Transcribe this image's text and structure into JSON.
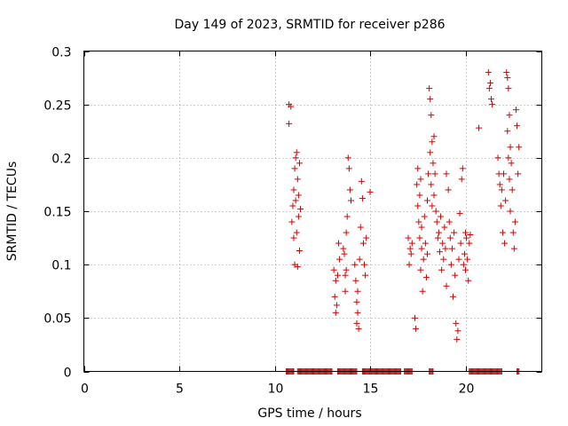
{
  "chart_data": {
    "type": "scatter",
    "title": "Day 149 of 2023, SRMTID for receiver p286",
    "xlabel": "GPS time / hours",
    "ylabel": "SRMTID / TECUs",
    "xlim": [
      0,
      24
    ],
    "ylim": [
      0,
      0.3
    ],
    "xticks": [
      0,
      5,
      10,
      15,
      20
    ],
    "yticks": [
      0,
      0.05,
      0.1,
      0.15,
      0.2,
      0.25,
      0.3
    ],
    "xtick_labels": [
      "0",
      "5",
      "10",
      "15",
      "20"
    ],
    "ytick_labels": [
      "0",
      "0.05",
      "0.1",
      "0.15",
      "0.2",
      "0.25",
      "0.3"
    ],
    "grid": true,
    "marker": "+",
    "series": [
      {
        "name": "SRMTID",
        "color": "#d40000",
        "points": [
          [
            10.75,
            0.25
          ],
          [
            10.75,
            0.232
          ],
          [
            10.85,
            0.248
          ],
          [
            10.9,
            0.14
          ],
          [
            10.95,
            0.155
          ],
          [
            11.0,
            0.17
          ],
          [
            11.0,
            0.125
          ],
          [
            11.05,
            0.19
          ],
          [
            11.05,
            0.1
          ],
          [
            11.1,
            0.2
          ],
          [
            11.1,
            0.16
          ],
          [
            11.15,
            0.205
          ],
          [
            11.15,
            0.13
          ],
          [
            11.2,
            0.18
          ],
          [
            11.2,
            0.098
          ],
          [
            11.25,
            0.165
          ],
          [
            11.25,
            0.145
          ],
          [
            11.3,
            0.195
          ],
          [
            11.3,
            0.113
          ],
          [
            11.35,
            0.152
          ],
          [
            13.1,
            0.095
          ],
          [
            13.15,
            0.07
          ],
          [
            13.2,
            0.055
          ],
          [
            13.2,
            0.085
          ],
          [
            13.25,
            0.062
          ],
          [
            13.3,
            0.09
          ],
          [
            13.35,
            0.12
          ],
          [
            13.4,
            0.105
          ],
          [
            13.6,
            0.115
          ],
          [
            13.65,
            0.11
          ],
          [
            13.7,
            0.09
          ],
          [
            13.7,
            0.075
          ],
          [
            13.75,
            0.13
          ],
          [
            13.75,
            0.095
          ],
          [
            13.8,
            0.145
          ],
          [
            13.85,
            0.2
          ],
          [
            13.9,
            0.19
          ],
          [
            13.95,
            0.17
          ],
          [
            14.0,
            0.16
          ],
          [
            14.2,
            0.1
          ],
          [
            14.25,
            0.085
          ],
          [
            14.3,
            0.065
          ],
          [
            14.3,
            0.045
          ],
          [
            14.35,
            0.075
          ],
          [
            14.35,
            0.055
          ],
          [
            14.4,
            0.04
          ],
          [
            14.45,
            0.105
          ],
          [
            14.5,
            0.135
          ],
          [
            14.55,
            0.178
          ],
          [
            14.6,
            0.162
          ],
          [
            14.65,
            0.12
          ],
          [
            14.7,
            0.1
          ],
          [
            14.75,
            0.09
          ],
          [
            14.8,
            0.125
          ],
          [
            15.0,
            0.168
          ],
          [
            17.0,
            0.125
          ],
          [
            17.05,
            0.1
          ],
          [
            17.1,
            0.115
          ],
          [
            17.15,
            0.11
          ],
          [
            17.2,
            0.12
          ],
          [
            17.35,
            0.05
          ],
          [
            17.4,
            0.04
          ],
          [
            17.45,
            0.175
          ],
          [
            17.5,
            0.19
          ],
          [
            17.5,
            0.155
          ],
          [
            17.55,
            0.14
          ],
          [
            17.6,
            0.165
          ],
          [
            17.6,
            0.125
          ],
          [
            17.65,
            0.18
          ],
          [
            17.65,
            0.095
          ],
          [
            17.7,
            0.115
          ],
          [
            17.7,
            0.135
          ],
          [
            17.75,
            0.075
          ],
          [
            17.8,
            0.105
          ],
          [
            17.85,
            0.145
          ],
          [
            17.9,
            0.12
          ],
          [
            17.95,
            0.088
          ],
          [
            18.0,
            0.16
          ],
          [
            18.0,
            0.11
          ],
          [
            18.05,
            0.185
          ],
          [
            18.1,
            0.265
          ],
          [
            18.15,
            0.255
          ],
          [
            18.15,
            0.205
          ],
          [
            18.2,
            0.24
          ],
          [
            18.2,
            0.175
          ],
          [
            18.25,
            0.215
          ],
          [
            18.25,
            0.155
          ],
          [
            18.3,
            0.195
          ],
          [
            18.35,
            0.22
          ],
          [
            18.35,
            0.165
          ],
          [
            18.4,
            0.185
          ],
          [
            18.45,
            0.15
          ],
          [
            18.5,
            0.14
          ],
          [
            18.55,
            0.125
          ],
          [
            18.6,
            0.13
          ],
          [
            18.65,
            0.112
          ],
          [
            18.7,
            0.145
          ],
          [
            18.75,
            0.095
          ],
          [
            18.8,
            0.12
          ],
          [
            18.85,
            0.105
          ],
          [
            18.9,
            0.135
          ],
          [
            18.95,
            0.115
          ],
          [
            19.0,
            0.185
          ],
          [
            19.0,
            0.08
          ],
          [
            19.1,
            0.17
          ],
          [
            19.15,
            0.14
          ],
          [
            19.2,
            0.125
          ],
          [
            19.25,
            0.1
          ],
          [
            19.3,
            0.115
          ],
          [
            19.35,
            0.07
          ],
          [
            19.4,
            0.13
          ],
          [
            19.45,
            0.09
          ],
          [
            19.5,
            0.045
          ],
          [
            19.55,
            0.03
          ],
          [
            19.6,
            0.038
          ],
          [
            19.65,
            0.105
          ],
          [
            19.7,
            0.148
          ],
          [
            19.75,
            0.12
          ],
          [
            19.8,
            0.18
          ],
          [
            19.85,
            0.19
          ],
          [
            19.9,
            0.1
          ],
          [
            19.95,
            0.11
          ],
          [
            20.0,
            0.13
          ],
          [
            20.0,
            0.095
          ],
          [
            20.05,
            0.125
          ],
          [
            20.1,
            0.105
          ],
          [
            20.15,
            0.085
          ],
          [
            20.2,
            0.12
          ],
          [
            20.25,
            0.128
          ],
          [
            20.7,
            0.228
          ],
          [
            21.2,
            0.28
          ],
          [
            21.25,
            0.265
          ],
          [
            21.3,
            0.27
          ],
          [
            21.35,
            0.255
          ],
          [
            21.4,
            0.25
          ],
          [
            21.7,
            0.2
          ],
          [
            21.75,
            0.185
          ],
          [
            21.8,
            0.175
          ],
          [
            21.85,
            0.155
          ],
          [
            21.9,
            0.17
          ],
          [
            21.95,
            0.13
          ],
          [
            22.0,
            0.185
          ],
          [
            22.05,
            0.12
          ],
          [
            22.1,
            0.16
          ],
          [
            22.15,
            0.28
          ],
          [
            22.2,
            0.275
          ],
          [
            22.2,
            0.225
          ],
          [
            22.25,
            0.265
          ],
          [
            22.25,
            0.2
          ],
          [
            22.3,
            0.24
          ],
          [
            22.3,
            0.18
          ],
          [
            22.35,
            0.21
          ],
          [
            22.35,
            0.15
          ],
          [
            22.4,
            0.195
          ],
          [
            22.45,
            0.17
          ],
          [
            22.5,
            0.13
          ],
          [
            22.55,
            0.115
          ],
          [
            22.6,
            0.14
          ],
          [
            22.65,
            0.245
          ],
          [
            22.7,
            0.23
          ],
          [
            22.75,
            0.185
          ],
          [
            22.8,
            0.21
          ]
        ],
        "zero_spans": [
          [
            10.6,
            11.0
          ],
          [
            11.2,
            13.0
          ],
          [
            13.3,
            14.3
          ],
          [
            14.6,
            16.6
          ],
          [
            16.8,
            17.2
          ],
          [
            18.1,
            18.3
          ],
          [
            20.2,
            21.9
          ],
          [
            22.7,
            22.8
          ]
        ]
      }
    ]
  }
}
